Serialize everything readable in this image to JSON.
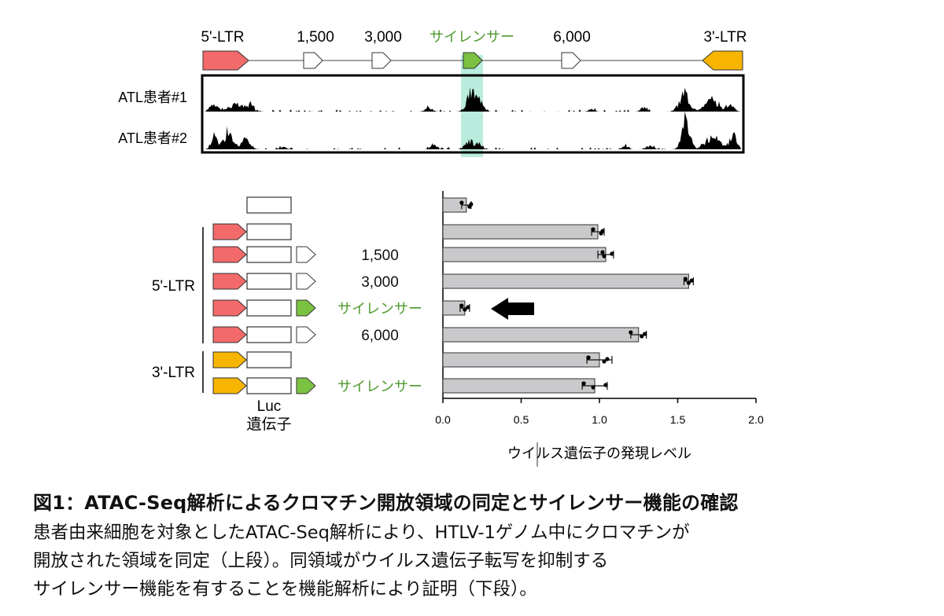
{
  "colors": {
    "ltr5": "#f26a6a",
    "ltr3": "#f7b500",
    "silencer": "#7cc242",
    "silencer_text": "#4e9a2e",
    "highlight": "#7fdcc0",
    "bar_fill": "#c9c9cc",
    "black": "#000000"
  },
  "genome_map": {
    "labels": {
      "ltr5": "5'-LTR",
      "p1500": "1,500",
      "p3000": "3,000",
      "silencer": "サイレンサー",
      "p6000": "6,000",
      "ltr3": "3'-LTR"
    },
    "tracks": [
      "ATL患者#1",
      "ATL患者#2"
    ]
  },
  "constructs": {
    "group_labels": {
      "ltr5": "5'-LTR",
      "ltr3": "3'-LTR"
    },
    "luc_label_line1": "Luc",
    "luc_label_line2": "遺伝子",
    "rows": [
      {
        "promoter": "none",
        "fragment": "none",
        "label": ""
      },
      {
        "promoter": "ltr5",
        "fragment": "none",
        "label": ""
      },
      {
        "promoter": "ltr5",
        "fragment": "white",
        "label": "1,500"
      },
      {
        "promoter": "ltr5",
        "fragment": "white",
        "label": "3,000"
      },
      {
        "promoter": "ltr5",
        "fragment": "silencer",
        "label": "サイレンサー"
      },
      {
        "promoter": "ltr5",
        "fragment": "white",
        "label": "6,000"
      },
      {
        "promoter": "ltr3",
        "fragment": "none",
        "label": ""
      },
      {
        "promoter": "ltr3",
        "fragment": "silencer",
        "label": "サイレンサー"
      }
    ]
  },
  "chart_data": {
    "type": "bar",
    "orientation": "horizontal",
    "xlabel": "ウイルス遺伝子の発現レベル",
    "xlim": [
      0,
      2.0
    ],
    "xticks": [
      "0.0",
      "0.5",
      "1.0",
      "1.5",
      "2.0"
    ],
    "tick_values": [
      0,
      0.5,
      1.0,
      1.5,
      2.0
    ],
    "values": [
      0.15,
      0.99,
      1.04,
      1.57,
      0.14,
      1.25,
      1.0,
      0.97
    ],
    "errors": [
      0.03,
      0.04,
      0.05,
      0.03,
      0.03,
      0.05,
      0.08,
      0.08
    ],
    "points": [
      [
        0.12,
        0.17,
        0.18
      ],
      [
        0.96,
        1.01,
        1.02
      ],
      [
        1.02,
        1.03,
        1.08
      ],
      [
        1.55,
        1.57,
        1.59
      ],
      [
        0.12,
        0.14,
        0.16
      ],
      [
        1.2,
        1.27,
        1.29
      ],
      [
        0.93,
        1.03,
        1.05
      ],
      [
        0.9,
        0.96,
        1.04
      ]
    ],
    "highlighted_row": 4
  },
  "caption": {
    "title": "図1：ATAC-Seq解析によるクロマチン開放領域の同定とサイレンサー機能の確認",
    "lines": [
      "患者由来細胞を対象としたATAC-Seq解析により、HTLV-1ゲノム中にクロマチンが",
      "開放された領域を同定（上段）。同領域がウイルス遺伝子転写を抑制する",
      "サイレンサー機能を有することを機能解析により証明（下段）。"
    ]
  }
}
